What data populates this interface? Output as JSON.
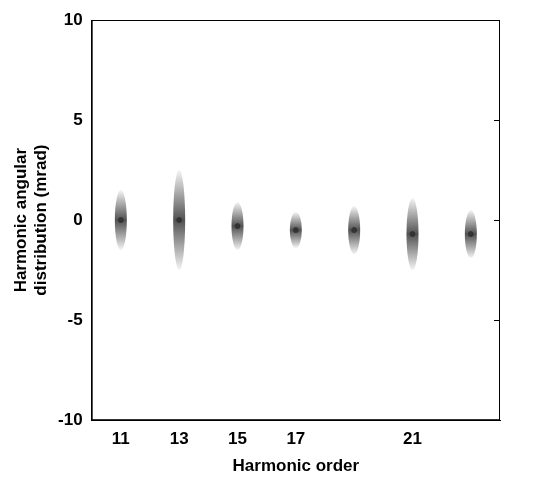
{
  "chart_data": {
    "type": "scatter",
    "x_label": "Harmonic order",
    "y_label": "Harmonic angular distribution (mrad)",
    "categories": [
      "11",
      "13",
      "15",
      "17",
      null,
      "21",
      null
    ],
    "values": [
      0,
      0,
      -0.3,
      -0.5,
      -0.5,
      -0.7,
      -0.7
    ],
    "error": [
      1.5,
      2.5,
      1.2,
      0.9,
      1.2,
      1.8,
      1.2
    ],
    "color": "#333333",
    "marker": "circle",
    "ylim": [
      -10,
      10
    ],
    "yticks": [
      -10,
      -5,
      0,
      5,
      10
    ],
    "grid": false
  }
}
